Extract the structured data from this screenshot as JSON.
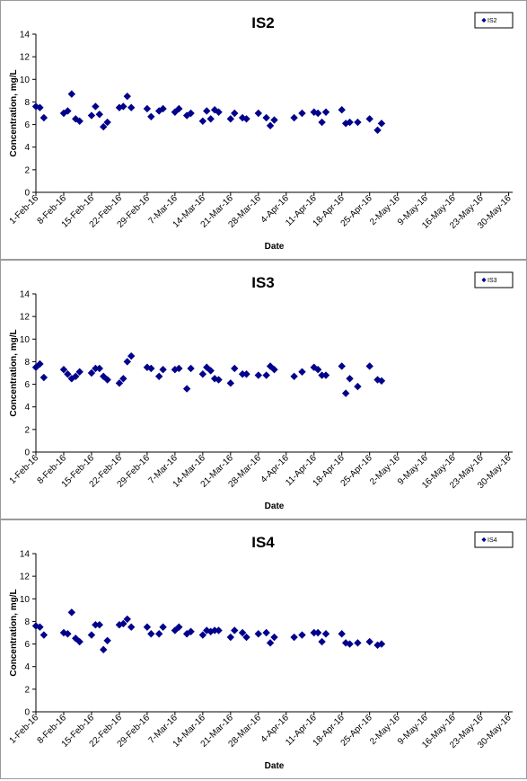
{
  "chart_data": [
    {
      "type": "scatter",
      "title": "IS2",
      "xlabel": "Date",
      "ylabel": "Concentration, mg/L",
      "ylim": [
        0,
        14
      ],
      "yticks": [
        "0",
        "2",
        "4",
        "6",
        "8",
        "10",
        "12",
        "14"
      ],
      "xlim": [
        "1-Feb-16",
        "31-May-16"
      ],
      "xticks": [
        "1-Feb-16",
        "8-Feb-16",
        "15-Feb-16",
        "22-Feb-16",
        "29-Feb-16",
        "7-Mar-16",
        "14-Mar-16",
        "21-Mar-16",
        "28-Mar-16",
        "4-Apr-16",
        "11-Apr-16",
        "18-Apr-16",
        "25-Apr-16",
        "2-May-16",
        "9-May-16",
        "16-May-16",
        "23-May-16",
        "30-May-16"
      ],
      "grid": false,
      "legend": "top-right",
      "series": [
        {
          "name": "IS2",
          "color": "#00008b",
          "marker": "diamond",
          "points": [
            {
              "x": "1-Feb-16",
              "y": 7.6
            },
            {
              "x": "2-Feb-16",
              "y": 7.5
            },
            {
              "x": "3-Feb-16",
              "y": 6.6
            },
            {
              "x": "8-Feb-16",
              "y": 7.0
            },
            {
              "x": "9-Feb-16",
              "y": 7.2
            },
            {
              "x": "10-Feb-16",
              "y": 8.7
            },
            {
              "x": "11-Feb-16",
              "y": 6.5
            },
            {
              "x": "12-Feb-16",
              "y": 6.3
            },
            {
              "x": "15-Feb-16",
              "y": 6.8
            },
            {
              "x": "16-Feb-16",
              "y": 7.6
            },
            {
              "x": "17-Feb-16",
              "y": 6.9
            },
            {
              "x": "18-Feb-16",
              "y": 5.8
            },
            {
              "x": "19-Feb-16",
              "y": 6.2
            },
            {
              "x": "22-Feb-16",
              "y": 7.5
            },
            {
              "x": "23-Feb-16",
              "y": 7.6
            },
            {
              "x": "24-Feb-16",
              "y": 8.5
            },
            {
              "x": "25-Feb-16",
              "y": 7.5
            },
            {
              "x": "29-Feb-16",
              "y": 7.4
            },
            {
              "x": "1-Mar-16",
              "y": 6.7
            },
            {
              "x": "3-Mar-16",
              "y": 7.2
            },
            {
              "x": "4-Mar-16",
              "y": 7.4
            },
            {
              "x": "7-Mar-16",
              "y": 7.1
            },
            {
              "x": "8-Mar-16",
              "y": 7.4
            },
            {
              "x": "10-Mar-16",
              "y": 6.8
            },
            {
              "x": "11-Mar-16",
              "y": 7.0
            },
            {
              "x": "14-Mar-16",
              "y": 6.3
            },
            {
              "x": "15-Mar-16",
              "y": 7.2
            },
            {
              "x": "16-Mar-16",
              "y": 6.5
            },
            {
              "x": "17-Mar-16",
              "y": 7.3
            },
            {
              "x": "18-Mar-16",
              "y": 7.1
            },
            {
              "x": "21-Mar-16",
              "y": 6.5
            },
            {
              "x": "22-Mar-16",
              "y": 7.0
            },
            {
              "x": "24-Mar-16",
              "y": 6.6
            },
            {
              "x": "25-Mar-16",
              "y": 6.5
            },
            {
              "x": "28-Mar-16",
              "y": 7.0
            },
            {
              "x": "30-Mar-16",
              "y": 6.6
            },
            {
              "x": "31-Mar-16",
              "y": 5.9
            },
            {
              "x": "1-Apr-16",
              "y": 6.4
            },
            {
              "x": "6-Apr-16",
              "y": 6.6
            },
            {
              "x": "8-Apr-16",
              "y": 7.0
            },
            {
              "x": "11-Apr-16",
              "y": 7.1
            },
            {
              "x": "12-Apr-16",
              "y": 7.0
            },
            {
              "x": "13-Apr-16",
              "y": 6.2
            },
            {
              "x": "14-Apr-16",
              "y": 7.1
            },
            {
              "x": "18-Apr-16",
              "y": 7.3
            },
            {
              "x": "19-Apr-16",
              "y": 6.1
            },
            {
              "x": "20-Apr-16",
              "y": 6.2
            },
            {
              "x": "22-Apr-16",
              "y": 6.2
            },
            {
              "x": "25-Apr-16",
              "y": 6.5
            },
            {
              "x": "27-Apr-16",
              "y": 5.5
            },
            {
              "x": "28-Apr-16",
              "y": 6.1
            }
          ]
        }
      ]
    },
    {
      "type": "scatter",
      "title": "IS3",
      "xlabel": "Date",
      "ylabel": "Concentration, mg/L",
      "ylim": [
        0,
        14
      ],
      "yticks": [
        "0",
        "2",
        "4",
        "6",
        "8",
        "10",
        "12",
        "14"
      ],
      "xlim": [
        "1-Feb-16",
        "31-May-16"
      ],
      "xticks": [
        "1-Feb-16",
        "8-Feb-16",
        "15-Feb-16",
        "22-Feb-16",
        "29-Feb-16",
        "7-Mar-16",
        "14-Mar-16",
        "21-Mar-16",
        "28-Mar-16",
        "4-Apr-16",
        "11-Apr-16",
        "18-Apr-16",
        "25-Apr-16",
        "2-May-16",
        "9-May-16",
        "16-May-16",
        "23-May-16",
        "30-May-16"
      ],
      "grid": false,
      "legend": "top-right",
      "series": [
        {
          "name": "IS3",
          "color": "#00008b",
          "marker": "diamond",
          "points": [
            {
              "x": "1-Feb-16",
              "y": 7.5
            },
            {
              "x": "2-Feb-16",
              "y": 7.8
            },
            {
              "x": "3-Feb-16",
              "y": 6.6
            },
            {
              "x": "8-Feb-16",
              "y": 7.3
            },
            {
              "x": "9-Feb-16",
              "y": 6.9
            },
            {
              "x": "10-Feb-16",
              "y": 6.5
            },
            {
              "x": "11-Feb-16",
              "y": 6.7
            },
            {
              "x": "12-Feb-16",
              "y": 7.1
            },
            {
              "x": "15-Feb-16",
              "y": 7.0
            },
            {
              "x": "16-Feb-16",
              "y": 7.4
            },
            {
              "x": "17-Feb-16",
              "y": 7.4
            },
            {
              "x": "18-Feb-16",
              "y": 6.7
            },
            {
              "x": "19-Feb-16",
              "y": 6.4
            },
            {
              "x": "22-Feb-16",
              "y": 6.1
            },
            {
              "x": "23-Feb-16",
              "y": 6.5
            },
            {
              "x": "24-Feb-16",
              "y": 8.0
            },
            {
              "x": "25-Feb-16",
              "y": 8.5
            },
            {
              "x": "29-Feb-16",
              "y": 7.5
            },
            {
              "x": "1-Mar-16",
              "y": 7.4
            },
            {
              "x": "3-Mar-16",
              "y": 6.7
            },
            {
              "x": "4-Mar-16",
              "y": 7.3
            },
            {
              "x": "7-Mar-16",
              "y": 7.3
            },
            {
              "x": "8-Mar-16",
              "y": 7.4
            },
            {
              "x": "10-Mar-16",
              "y": 5.6
            },
            {
              "x": "11-Mar-16",
              "y": 7.4
            },
            {
              "x": "14-Mar-16",
              "y": 6.9
            },
            {
              "x": "15-Mar-16",
              "y": 7.5
            },
            {
              "x": "16-Mar-16",
              "y": 7.2
            },
            {
              "x": "17-Mar-16",
              "y": 6.5
            },
            {
              "x": "18-Mar-16",
              "y": 6.4
            },
            {
              "x": "21-Mar-16",
              "y": 6.1
            },
            {
              "x": "22-Mar-16",
              "y": 7.4
            },
            {
              "x": "24-Mar-16",
              "y": 6.9
            },
            {
              "x": "25-Mar-16",
              "y": 6.9
            },
            {
              "x": "28-Mar-16",
              "y": 6.8
            },
            {
              "x": "30-Mar-16",
              "y": 6.8
            },
            {
              "x": "31-Mar-16",
              "y": 7.6
            },
            {
              "x": "1-Apr-16",
              "y": 7.3
            },
            {
              "x": "6-Apr-16",
              "y": 6.7
            },
            {
              "x": "8-Apr-16",
              "y": 7.1
            },
            {
              "x": "11-Apr-16",
              "y": 7.5
            },
            {
              "x": "12-Apr-16",
              "y": 7.3
            },
            {
              "x": "13-Apr-16",
              "y": 6.8
            },
            {
              "x": "14-Apr-16",
              "y": 6.8
            },
            {
              "x": "18-Apr-16",
              "y": 7.6
            },
            {
              "x": "19-Apr-16",
              "y": 5.2
            },
            {
              "x": "20-Apr-16",
              "y": 6.5
            },
            {
              "x": "22-Apr-16",
              "y": 5.8
            },
            {
              "x": "25-Apr-16",
              "y": 7.6
            },
            {
              "x": "27-Apr-16",
              "y": 6.4
            },
            {
              "x": "28-Apr-16",
              "y": 6.3
            }
          ]
        }
      ]
    },
    {
      "type": "scatter",
      "title": "IS4",
      "xlabel": "Date",
      "ylabel": "Concentration, mg/L",
      "ylim": [
        0,
        14
      ],
      "yticks": [
        "0",
        "2",
        "4",
        "6",
        "8",
        "10",
        "12",
        "14"
      ],
      "xlim": [
        "1-Feb-16",
        "31-May-16"
      ],
      "xticks": [
        "1-Feb-16",
        "8-Feb-16",
        "15-Feb-16",
        "22-Feb-16",
        "29-Feb-16",
        "7-Mar-16",
        "14-Mar-16",
        "21-Mar-16",
        "28-Mar-16",
        "4-Apr-16",
        "11-Apr-16",
        "18-Apr-16",
        "25-Apr-16",
        "2-May-16",
        "9-May-16",
        "16-May-16",
        "23-May-16",
        "30-May-16"
      ],
      "grid": false,
      "legend": "top-right",
      "series": [
        {
          "name": "IS4",
          "color": "#00008b",
          "marker": "diamond",
          "points": [
            {
              "x": "1-Feb-16",
              "y": 7.6
            },
            {
              "x": "2-Feb-16",
              "y": 7.5
            },
            {
              "x": "3-Feb-16",
              "y": 6.8
            },
            {
              "x": "8-Feb-16",
              "y": 7.0
            },
            {
              "x": "9-Feb-16",
              "y": 6.9
            },
            {
              "x": "10-Feb-16",
              "y": 8.8
            },
            {
              "x": "11-Feb-16",
              "y": 6.5
            },
            {
              "x": "12-Feb-16",
              "y": 6.2
            },
            {
              "x": "15-Feb-16",
              "y": 6.8
            },
            {
              "x": "16-Feb-16",
              "y": 7.7
            },
            {
              "x": "17-Feb-16",
              "y": 7.7
            },
            {
              "x": "18-Feb-16",
              "y": 5.5
            },
            {
              "x": "19-Feb-16",
              "y": 6.3
            },
            {
              "x": "22-Feb-16",
              "y": 7.7
            },
            {
              "x": "23-Feb-16",
              "y": 7.8
            },
            {
              "x": "24-Feb-16",
              "y": 8.2
            },
            {
              "x": "25-Feb-16",
              "y": 7.5
            },
            {
              "x": "29-Feb-16",
              "y": 7.5
            },
            {
              "x": "1-Mar-16",
              "y": 6.9
            },
            {
              "x": "3-Mar-16",
              "y": 6.9
            },
            {
              "x": "4-Mar-16",
              "y": 7.5
            },
            {
              "x": "7-Mar-16",
              "y": 7.2
            },
            {
              "x": "8-Mar-16",
              "y": 7.5
            },
            {
              "x": "10-Mar-16",
              "y": 6.9
            },
            {
              "x": "11-Mar-16",
              "y": 7.1
            },
            {
              "x": "14-Mar-16",
              "y": 6.8
            },
            {
              "x": "15-Mar-16",
              "y": 7.2
            },
            {
              "x": "16-Mar-16",
              "y": 7.1
            },
            {
              "x": "17-Mar-16",
              "y": 7.2
            },
            {
              "x": "18-Mar-16",
              "y": 7.2
            },
            {
              "x": "21-Mar-16",
              "y": 6.6
            },
            {
              "x": "22-Mar-16",
              "y": 7.2
            },
            {
              "x": "24-Mar-16",
              "y": 7.0
            },
            {
              "x": "25-Mar-16",
              "y": 6.6
            },
            {
              "x": "28-Mar-16",
              "y": 6.9
            },
            {
              "x": "30-Mar-16",
              "y": 7.0
            },
            {
              "x": "31-Mar-16",
              "y": 6.1
            },
            {
              "x": "1-Apr-16",
              "y": 6.6
            },
            {
              "x": "6-Apr-16",
              "y": 6.6
            },
            {
              "x": "8-Apr-16",
              "y": 6.8
            },
            {
              "x": "11-Apr-16",
              "y": 7.0
            },
            {
              "x": "12-Apr-16",
              "y": 7.0
            },
            {
              "x": "13-Apr-16",
              "y": 6.2
            },
            {
              "x": "14-Apr-16",
              "y": 6.9
            },
            {
              "x": "18-Apr-16",
              "y": 6.9
            },
            {
              "x": "19-Apr-16",
              "y": 6.1
            },
            {
              "x": "20-Apr-16",
              "y": 6.0
            },
            {
              "x": "22-Apr-16",
              "y": 6.1
            },
            {
              "x": "25-Apr-16",
              "y": 6.2
            },
            {
              "x": "27-Apr-16",
              "y": 5.9
            },
            {
              "x": "28-Apr-16",
              "y": 6.0
            }
          ]
        }
      ]
    }
  ]
}
